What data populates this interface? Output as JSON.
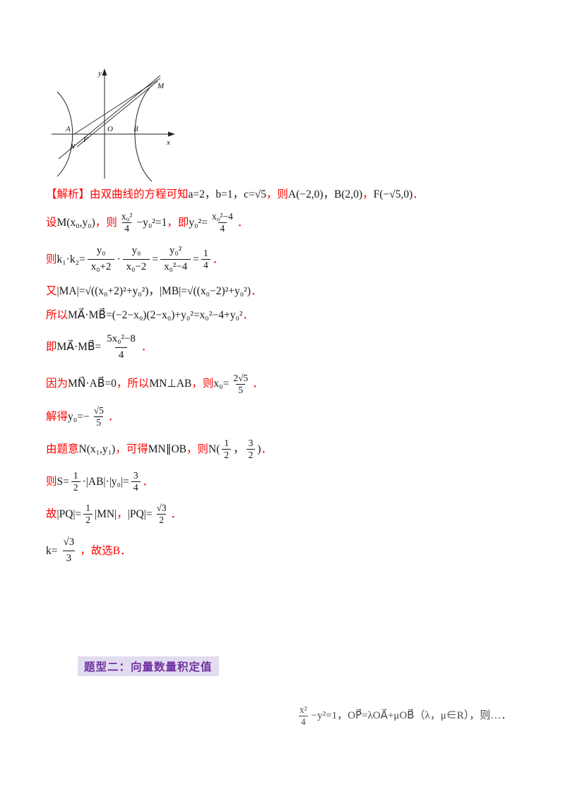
{
  "colors": {
    "solution_red": "#ff0000",
    "math_black": "#161616",
    "header_purple": "#7030a0",
    "header_background": "#e2dcf0"
  },
  "figure": {
    "labels": {
      "y": "y",
      "x": "x",
      "M": "M",
      "A": "A",
      "O": "O",
      "B": "B",
      "N": "N",
      "F": "F"
    }
  },
  "section_header": {
    "label": "题型二：向量数量积定值"
  },
  "lines": [
    {
      "segments": [
        {
          "type": "text",
          "color": "red",
          "text": "【解析】由双曲线的方程可知 "
        },
        {
          "type": "text",
          "color": "black",
          "text": "a=2，b=1，c=√5"
        },
        {
          "type": "text",
          "color": "red",
          "text": "，则 "
        },
        {
          "type": "text",
          "color": "black",
          "text": "A(−2,0)，B(2,0)"
        },
        {
          "type": "text",
          "color": "red",
          "text": "，"
        },
        {
          "type": "text",
          "color": "black",
          "text": "F(−√5,0)"
        },
        {
          "type": "text",
          "color": "red",
          "text": "．"
        }
      ]
    },
    {
      "segments": [
        {
          "type": "text",
          "color": "red",
          "text": "设 "
        },
        {
          "type": "text",
          "color": "black",
          "text": "M(x₀,y₀)"
        },
        {
          "type": "text",
          "color": "red",
          "text": "，则 "
        },
        {
          "type": "frac",
          "color": "black",
          "num": "x₀²",
          "den": "4"
        },
        {
          "type": "text",
          "color": "black",
          "text": "−y₀²=1"
        },
        {
          "type": "text",
          "color": "red",
          "text": "，即 "
        },
        {
          "type": "text",
          "color": "black",
          "text": "y₀²="
        },
        {
          "type": "frac",
          "color": "black",
          "num": "x₀²−4",
          "den": "4"
        },
        {
          "type": "text",
          "color": "red",
          "text": "．"
        }
      ]
    },
    {
      "segments": [
        {
          "type": "text",
          "color": "red",
          "text": "则 "
        },
        {
          "type": "text",
          "color": "black",
          "text": "k₁·k₂="
        },
        {
          "type": "bigfrac",
          "color": "black",
          "num": "y₀",
          "den": "x₀+2"
        },
        {
          "type": "text",
          "color": "black",
          "text": "·"
        },
        {
          "type": "bigfrac",
          "color": "black",
          "num": "y₀",
          "den": "x₀−2"
        },
        {
          "type": "text",
          "color": "black",
          "text": "="
        },
        {
          "type": "bigfrac",
          "color": "black",
          "num": "y₀²",
          "den": "x₀²−4"
        },
        {
          "type": "text",
          "color": "black",
          "text": "="
        },
        {
          "type": "frac",
          "color": "black",
          "num": "1",
          "den": "4"
        },
        {
          "type": "text",
          "color": "red",
          "text": "．"
        }
      ]
    },
    {
      "segments": [
        {
          "type": "text",
          "color": "red",
          "text": "又 "
        },
        {
          "type": "text",
          "color": "black",
          "text": "|MA|=√((x₀+2)²+y₀²)"
        },
        {
          "type": "text",
          "color": "black",
          "text": "，|MB|=√((x₀−2)²+y₀²)"
        },
        {
          "type": "text",
          "color": "red",
          "text": "．"
        }
      ]
    },
    {
      "segments": [
        {
          "type": "text",
          "color": "red",
          "text": "所以 "
        },
        {
          "type": "text",
          "color": "black",
          "text": "MA⃗·MB⃗=(−2−x₀)(2−x₀)+y₀²=x₀²−4+y₀²"
        },
        {
          "type": "text",
          "color": "red",
          "text": "．"
        }
      ]
    },
    {
      "segments": [
        {
          "type": "text",
          "color": "red",
          "text": "即 "
        },
        {
          "type": "text",
          "color": "black",
          "text": "MA⃗·MB⃗="
        },
        {
          "type": "bigfrac",
          "color": "black",
          "num": "5x₀²−8",
          "den": "4"
        },
        {
          "type": "text",
          "color": "red",
          "text": "．"
        }
      ]
    },
    {
      "segments": [
        {
          "type": "text",
          "color": "red",
          "text": "因为 "
        },
        {
          "type": "text",
          "color": "black",
          "text": "MN⃗·AB⃗=0"
        },
        {
          "type": "text",
          "color": "red",
          "text": "，所以 "
        },
        {
          "type": "text",
          "color": "black",
          "text": "MN⊥AB"
        },
        {
          "type": "text",
          "color": "red",
          "text": "，则 "
        },
        {
          "type": "text",
          "color": "black",
          "text": "x₀="
        },
        {
          "type": "frac",
          "color": "black",
          "num": "2√5",
          "den": "5"
        },
        {
          "type": "text",
          "color": "red",
          "text": "．"
        }
      ]
    },
    {
      "segments": [
        {
          "type": "text",
          "color": "red",
          "text": "解得 "
        },
        {
          "type": "text",
          "color": "black",
          "text": "y₀=−"
        },
        {
          "type": "frac",
          "color": "black",
          "num": "√5",
          "den": "5"
        },
        {
          "type": "text",
          "color": "red",
          "text": "．"
        }
      ]
    },
    {
      "segments": [
        {
          "type": "text",
          "color": "red",
          "text": "由题意 "
        },
        {
          "type": "text",
          "color": "black",
          "text": "N(x₁,y₁)"
        },
        {
          "type": "text",
          "color": "red",
          "text": "，可得 "
        },
        {
          "type": "text",
          "color": "black",
          "text": "MN∥OB"
        },
        {
          "type": "text",
          "color": "red",
          "text": "，则 "
        },
        {
          "type": "text",
          "color": "black",
          "text": "N("
        },
        {
          "type": "frac",
          "color": "black",
          "num": "1",
          "den": "2"
        },
        {
          "type": "text",
          "color": "black",
          "text": "，"
        },
        {
          "type": "frac",
          "color": "black",
          "num": "3",
          "den": "2"
        },
        {
          "type": "text",
          "color": "black",
          "text": ")"
        },
        {
          "type": "text",
          "color": "red",
          "text": "．"
        }
      ]
    },
    {
      "segments": [
        {
          "type": "text",
          "color": "red",
          "text": "则 "
        },
        {
          "type": "text",
          "color": "black",
          "text": "S="
        },
        {
          "type": "frac",
          "color": "black",
          "num": "1",
          "den": "2"
        },
        {
          "type": "text",
          "color": "black",
          "text": "·|AB|·|y₀|="
        },
        {
          "type": "frac",
          "color": "black",
          "num": "3",
          "den": "4"
        },
        {
          "type": "text",
          "color": "red",
          "text": "．"
        }
      ]
    },
    {
      "segments": [
        {
          "type": "text",
          "color": "red",
          "text": "故 "
        },
        {
          "type": "text",
          "color": "black",
          "text": "|PQ|="
        },
        {
          "type": "frac",
          "color": "black",
          "num": "1",
          "den": "2"
        },
        {
          "type": "text",
          "color": "black",
          "text": "|MN|"
        },
        {
          "type": "text",
          "color": "red",
          "text": "，"
        },
        {
          "type": "text",
          "color": "black",
          "text": "|PQ|="
        },
        {
          "type": "frac",
          "color": "black",
          "num": "√3",
          "den": "2"
        },
        {
          "type": "text",
          "color": "red",
          "text": "．"
        }
      ]
    },
    {
      "segments": [
        {
          "type": "text",
          "color": "black",
          "text": "k="
        },
        {
          "type": "bigfrac",
          "color": "black",
          "num": "√3",
          "den": "3"
        },
        {
          "type": "text",
          "color": "red",
          "text": "，故选B．"
        }
      ]
    }
  ],
  "bottom_formula": {
    "segments": [
      {
        "type": "frac",
        "color": "faint",
        "num": "x²",
        "den": "4"
      },
      {
        "type": "text",
        "color": "faint",
        "text": "−y²=1，"
      },
      {
        "type": "text",
        "color": "faint",
        "text": "OP⃗=λOA⃗+μOB⃗（λ，μ∈R），则…．"
      }
    ]
  }
}
